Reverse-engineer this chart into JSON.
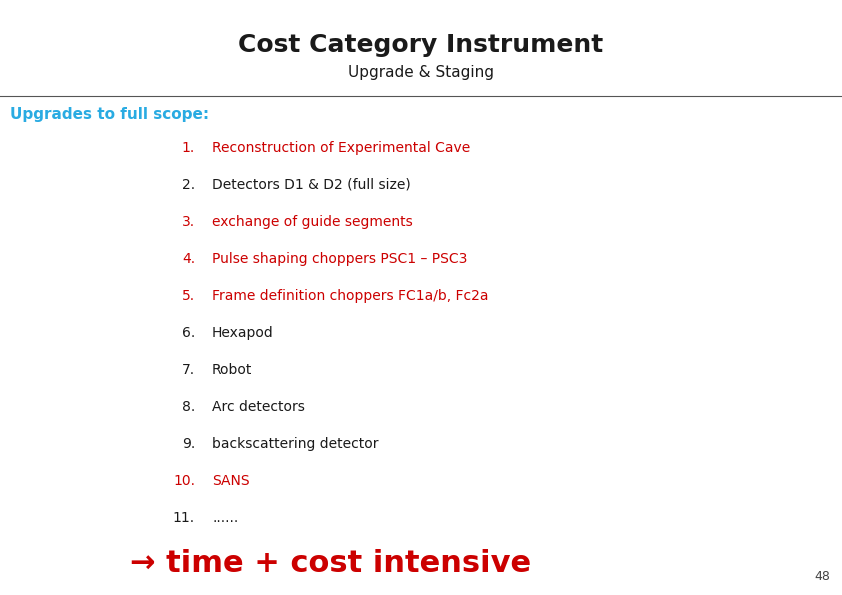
{
  "title": "Cost Category Instrument",
  "subtitle": "Upgrade & Staging",
  "section_header": "Upgrades to full scope:",
  "items": [
    {
      "num": "1.",
      "text": "Reconstruction of Experimental Cave",
      "color": "#cc0000"
    },
    {
      "num": "2.",
      "text": "Detectors D1 & D2 (full size)",
      "color": "#1a1a1a"
    },
    {
      "num": "3.",
      "text": "exchange of guide segments",
      "color": "#cc0000"
    },
    {
      "num": "4.",
      "text": "Pulse shaping choppers PSC1 – PSC3",
      "color": "#cc0000"
    },
    {
      "num": "5.",
      "text": "Frame definition choppers FC1a/b, Fc2a",
      "color": "#cc0000"
    },
    {
      "num": "6.",
      "text": "Hexapod",
      "color": "#1a1a1a"
    },
    {
      "num": "7.",
      "text": "Robot",
      "color": "#1a1a1a"
    },
    {
      "num": "8.",
      "text": "Arc detectors",
      "color": "#1a1a1a"
    },
    {
      "num": "9.",
      "text": "backscattering detector",
      "color": "#1a1a1a"
    },
    {
      "num": "10.",
      "text": "SANS",
      "color": "#cc0000"
    },
    {
      "num": "11.",
      "text": "......",
      "color": "#1a1a1a"
    }
  ],
  "arrow_char": "→",
  "arrow_text": " time + cost intensive",
  "arrow_color": "#cc0000",
  "page_number": "48",
  "bg_color": "#ffffff",
  "title_color": "#1a1a1a",
  "subtitle_color": "#1a1a1a",
  "header_color": "#29abe2",
  "separator_color": "#555555",
  "title_fontsize": 18,
  "subtitle_fontsize": 11,
  "header_fontsize": 11,
  "item_fontsize": 10,
  "arrow_fontsize": 22,
  "page_fontsize": 9
}
